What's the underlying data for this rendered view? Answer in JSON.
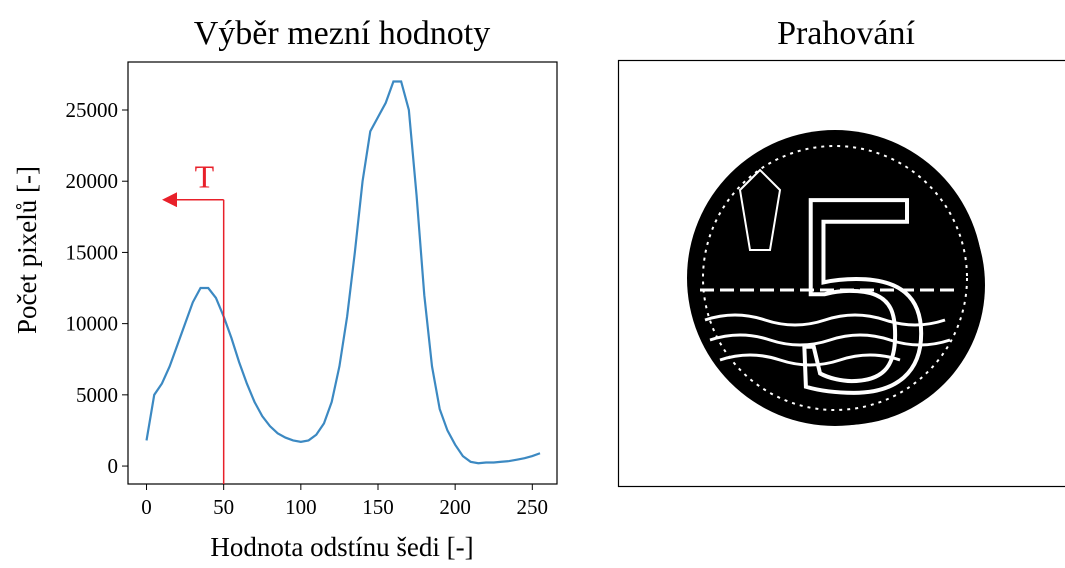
{
  "chart_data": {
    "type": "line",
    "title": "Výběr mezní hodnoty",
    "x_label": "Hodnota odstínu šedi [-]",
    "y_label": "Počet pixelů [-]",
    "x": [
      0,
      5,
      10,
      15,
      20,
      25,
      30,
      35,
      40,
      45,
      50,
      55,
      60,
      65,
      70,
      75,
      80,
      85,
      90,
      95,
      100,
      105,
      110,
      115,
      120,
      125,
      130,
      135,
      140,
      145,
      150,
      155,
      160,
      165,
      170,
      175,
      180,
      185,
      190,
      195,
      200,
      205,
      210,
      215,
      220,
      225,
      230,
      235,
      240,
      245,
      250,
      255
    ],
    "series": [
      {
        "color": "#3c89c2",
        "values": [
          1800,
          5000,
          5800,
          7000,
          8500,
          10000,
          11500,
          12500,
          12500,
          11800,
          10500,
          9000,
          7300,
          5800,
          4500,
          3500,
          2800,
          2300,
          2000,
          1800,
          1700,
          1800,
          2200,
          3000,
          4500,
          7000,
          10500,
          15000,
          20000,
          23500,
          24500,
          25500,
          27000,
          27000,
          25000,
          19000,
          12000,
          7000,
          4000,
          2500,
          1500,
          700,
          300,
          200,
          250,
          250,
          300,
          350,
          450,
          550,
          700,
          900
        ]
      }
    ],
    "xlim": [
      -12,
      266
    ],
    "ylim": [
      -1260,
      28370
    ],
    "xticks": [
      0,
      50,
      100,
      150,
      200,
      250
    ],
    "yticks": [
      0,
      5000,
      10000,
      15000,
      20000,
      25000
    ],
    "annotation": {
      "text": "T",
      "x": 50,
      "y": 18700,
      "arrow_to_x": 12,
      "color": "#e8202a"
    }
  },
  "image": {
    "title": "Prahování"
  }
}
